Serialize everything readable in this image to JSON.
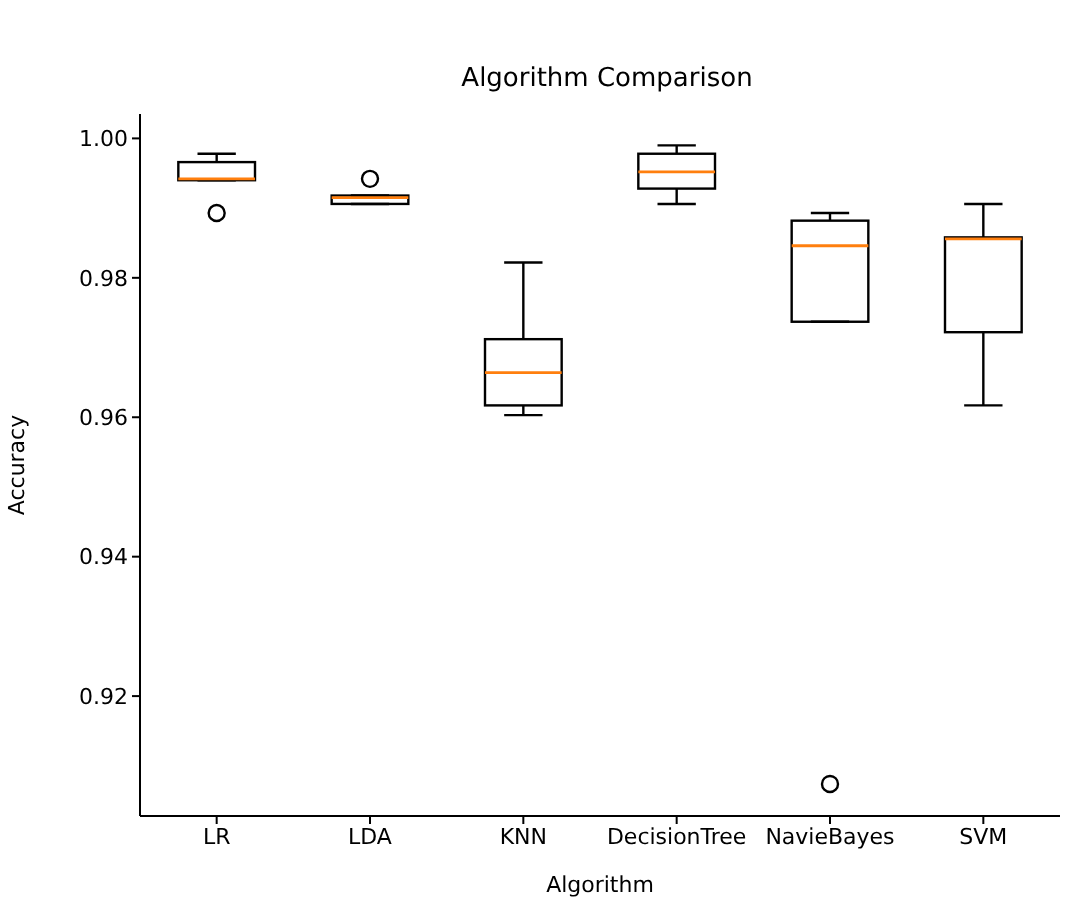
{
  "chart_data": {
    "type": "box",
    "title": "Algorithm Comparison",
    "xlabel": "Algorithm",
    "ylabel": "Accuracy",
    "categories": [
      "LR",
      "LDA",
      "KNN",
      "DecisionTree",
      "NavieBayes",
      "SVM"
    ],
    "color": "#000000",
    "boxes": [
      {
        "low": 0.994,
        "q1": 0.994,
        "median": 0.9942,
        "q3": 0.9966,
        "high": 0.9978,
        "outliers": [
          0.9893
        ]
      },
      {
        "low": 0.9906,
        "q1": 0.9906,
        "median": 0.9915,
        "q3": 0.9918,
        "high": 0.9918,
        "outliers": [
          0.9942
        ]
      },
      {
        "low": 0.9603,
        "q1": 0.9617,
        "median": 0.9664,
        "q3": 0.9712,
        "high": 0.9822
      },
      {
        "low": 0.9906,
        "q1": 0.9928,
        "median": 0.9952,
        "q3": 0.9978,
        "high": 0.999
      },
      {
        "low": 0.9737,
        "q1": 0.9737,
        "median": 0.9846,
        "q3": 0.9882,
        "high": 0.9893,
        "outliers": [
          0.9074
        ]
      },
      {
        "low": 0.9617,
        "q1": 0.9722,
        "median": 0.9856,
        "q3": 0.9858,
        "high": 0.9906
      }
    ],
    "ylim": [
      0.9028,
      1.0035
    ],
    "yticks": [
      0.92,
      0.94,
      0.96,
      0.98,
      {
        "value": 1,
        "label": "1.00"
      }
    ],
    "grid": false
  }
}
